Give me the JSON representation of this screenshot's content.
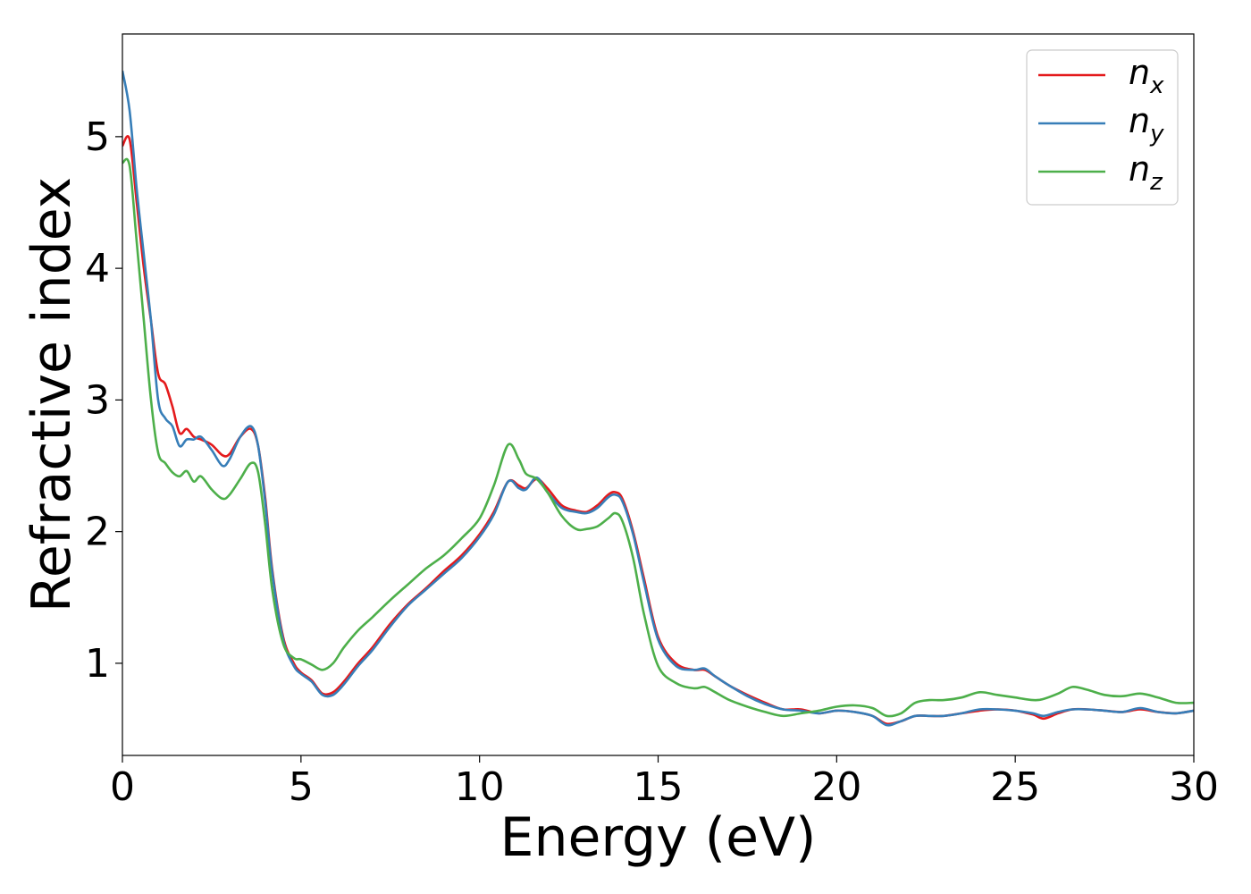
{
  "chart_data": {
    "type": "line",
    "xlabel": "Energy (eV)",
    "ylabel": "Refractive index",
    "xlim": [
      0,
      30
    ],
    "ylim": [
      0.3,
      5.78
    ],
    "xticks": [
      0,
      5,
      10,
      15,
      20,
      25,
      30
    ],
    "yticks": [
      1,
      2,
      3,
      4,
      5
    ],
    "grid": false,
    "legend_position": "top-right",
    "series": [
      {
        "name": "n_x",
        "legend_base": "n",
        "legend_sub": "x",
        "color": "#e41a1c",
        "x": [
          0,
          0.2,
          0.4,
          0.6,
          0.8,
          1.0,
          1.2,
          1.4,
          1.6,
          1.8,
          2.0,
          2.2,
          2.5,
          2.8,
          3.0,
          3.3,
          3.6,
          3.8,
          4.0,
          4.2,
          4.5,
          4.8,
          5.0,
          5.3,
          5.6,
          5.9,
          6.2,
          6.6,
          7.0,
          7.5,
          8.0,
          8.5,
          9.0,
          9.5,
          10.0,
          10.4,
          10.8,
          11.1,
          11.3,
          11.6,
          11.9,
          12.3,
          12.7,
          13.0,
          13.3,
          13.6,
          13.8,
          14.0,
          14.3,
          14.6,
          15.0,
          15.5,
          16.0,
          16.3,
          16.6,
          17.0,
          17.5,
          18.0,
          18.5,
          19.0,
          19.5,
          20.0,
          20.5,
          21.0,
          21.4,
          21.8,
          22.2,
          22.6,
          23.0,
          23.5,
          24.0,
          24.5,
          25.0,
          25.5,
          25.8,
          26.2,
          26.6,
          27.0,
          27.5,
          28.0,
          28.5,
          29.0,
          29.5,
          30.0
        ],
        "values": [
          4.93,
          4.98,
          4.5,
          4.0,
          3.6,
          3.2,
          3.12,
          2.95,
          2.75,
          2.78,
          2.72,
          2.7,
          2.66,
          2.58,
          2.59,
          2.72,
          2.78,
          2.65,
          2.25,
          1.7,
          1.2,
          1.0,
          0.93,
          0.87,
          0.77,
          0.78,
          0.86,
          1.0,
          1.12,
          1.3,
          1.45,
          1.57,
          1.7,
          1.82,
          1.98,
          2.15,
          2.38,
          2.35,
          2.33,
          2.4,
          2.33,
          2.2,
          2.16,
          2.15,
          2.2,
          2.28,
          2.3,
          2.25,
          2.0,
          1.65,
          1.2,
          1.0,
          0.95,
          0.95,
          0.9,
          0.83,
          0.76,
          0.7,
          0.65,
          0.65,
          0.62,
          0.64,
          0.63,
          0.6,
          0.54,
          0.56,
          0.6,
          0.6,
          0.6,
          0.62,
          0.64,
          0.65,
          0.64,
          0.61,
          0.58,
          0.62,
          0.65,
          0.65,
          0.64,
          0.63,
          0.65,
          0.63,
          0.62,
          0.64
        ]
      },
      {
        "name": "n_y",
        "legend_base": "n",
        "legend_sub": "y",
        "color": "#377eb8",
        "x": [
          0,
          0.2,
          0.4,
          0.6,
          0.8,
          1.0,
          1.2,
          1.4,
          1.6,
          1.8,
          2.0,
          2.2,
          2.5,
          2.8,
          3.0,
          3.3,
          3.6,
          3.8,
          4.0,
          4.2,
          4.5,
          4.8,
          5.0,
          5.3,
          5.6,
          5.9,
          6.2,
          6.6,
          7.0,
          7.5,
          8.0,
          8.5,
          9.0,
          9.5,
          10.0,
          10.4,
          10.8,
          11.1,
          11.3,
          11.6,
          11.9,
          12.3,
          12.7,
          13.0,
          13.3,
          13.6,
          13.8,
          14.0,
          14.3,
          14.6,
          15.0,
          15.5,
          16.0,
          16.3,
          16.6,
          17.0,
          17.5,
          18.0,
          18.5,
          19.0,
          19.5,
          20.0,
          20.5,
          21.0,
          21.4,
          21.8,
          22.2,
          22.6,
          23.0,
          23.5,
          24.0,
          24.5,
          25.0,
          25.5,
          25.8,
          26.2,
          26.6,
          27.0,
          27.5,
          28.0,
          28.5,
          29.0,
          29.5,
          30.0
        ],
        "values": [
          5.5,
          5.2,
          4.6,
          4.1,
          3.6,
          3.0,
          2.86,
          2.8,
          2.65,
          2.7,
          2.7,
          2.72,
          2.62,
          2.5,
          2.55,
          2.72,
          2.8,
          2.65,
          2.22,
          1.68,
          1.18,
          0.98,
          0.92,
          0.86,
          0.76,
          0.76,
          0.84,
          0.98,
          1.1,
          1.28,
          1.44,
          1.56,
          1.68,
          1.8,
          1.96,
          2.13,
          2.38,
          2.33,
          2.32,
          2.41,
          2.3,
          2.18,
          2.15,
          2.14,
          2.18,
          2.26,
          2.28,
          2.23,
          1.98,
          1.62,
          1.18,
          0.98,
          0.95,
          0.96,
          0.9,
          0.83,
          0.75,
          0.69,
          0.65,
          0.64,
          0.62,
          0.64,
          0.63,
          0.6,
          0.53,
          0.56,
          0.6,
          0.6,
          0.6,
          0.62,
          0.65,
          0.65,
          0.64,
          0.62,
          0.6,
          0.63,
          0.65,
          0.65,
          0.64,
          0.63,
          0.66,
          0.63,
          0.62,
          0.64
        ]
      },
      {
        "name": "n_z",
        "legend_base": "n",
        "legend_sub": "z",
        "color": "#4daf4a",
        "x": [
          0,
          0.2,
          0.4,
          0.6,
          0.8,
          1.0,
          1.2,
          1.4,
          1.6,
          1.8,
          2.0,
          2.2,
          2.5,
          2.8,
          3.0,
          3.3,
          3.6,
          3.8,
          4.0,
          4.2,
          4.5,
          4.8,
          5.0,
          5.3,
          5.6,
          5.9,
          6.2,
          6.6,
          7.0,
          7.5,
          8.0,
          8.5,
          9.0,
          9.5,
          10.0,
          10.4,
          10.8,
          11.1,
          11.3,
          11.6,
          11.9,
          12.3,
          12.7,
          13.0,
          13.3,
          13.6,
          13.8,
          14.0,
          14.3,
          14.6,
          15.0,
          15.5,
          16.0,
          16.3,
          16.6,
          17.0,
          17.5,
          18.0,
          18.5,
          19.0,
          19.5,
          20.0,
          20.5,
          21.0,
          21.4,
          21.8,
          22.2,
          22.6,
          23.0,
          23.5,
          24.0,
          24.5,
          25.0,
          25.5,
          25.8,
          26.2,
          26.6,
          27.0,
          27.5,
          28.0,
          28.5,
          29.0,
          29.5,
          30.0
        ],
        "values": [
          4.8,
          4.78,
          4.2,
          3.6,
          3.0,
          2.6,
          2.52,
          2.45,
          2.42,
          2.46,
          2.38,
          2.42,
          2.32,
          2.25,
          2.28,
          2.4,
          2.52,
          2.45,
          2.05,
          1.55,
          1.15,
          1.04,
          1.03,
          0.99,
          0.95,
          1.0,
          1.12,
          1.25,
          1.35,
          1.48,
          1.6,
          1.72,
          1.82,
          1.95,
          2.1,
          2.35,
          2.66,
          2.55,
          2.44,
          2.4,
          2.3,
          2.12,
          2.02,
          2.02,
          2.04,
          2.1,
          2.14,
          2.08,
          1.8,
          1.38,
          0.98,
          0.85,
          0.81,
          0.82,
          0.78,
          0.72,
          0.67,
          0.63,
          0.6,
          0.62,
          0.64,
          0.67,
          0.68,
          0.66,
          0.6,
          0.62,
          0.7,
          0.72,
          0.72,
          0.74,
          0.78,
          0.76,
          0.74,
          0.72,
          0.73,
          0.77,
          0.82,
          0.8,
          0.76,
          0.75,
          0.77,
          0.74,
          0.7,
          0.7
        ]
      }
    ]
  }
}
